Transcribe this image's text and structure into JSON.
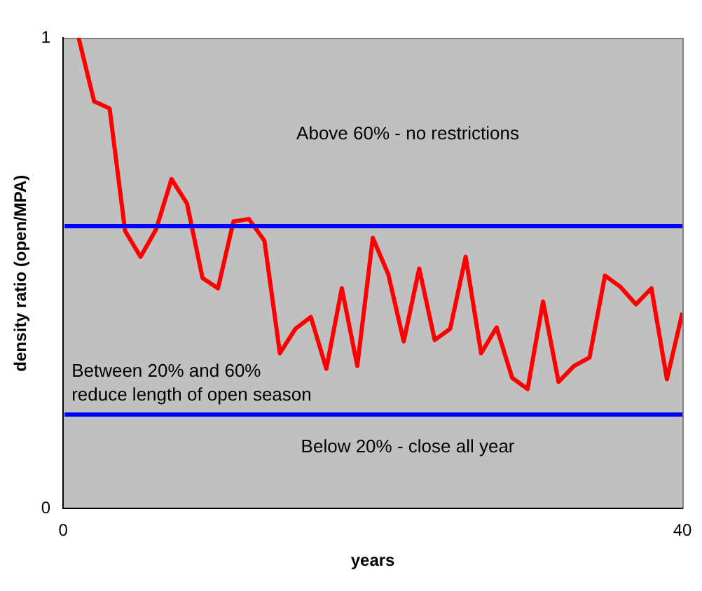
{
  "chart_data": {
    "type": "line",
    "xlabel": "years",
    "ylabel": "density ratio (open/MPA)",
    "x": [
      1,
      2,
      3,
      4,
      5,
      6,
      7,
      8,
      9,
      10,
      11,
      12,
      13,
      14,
      15,
      16,
      17,
      18,
      19,
      20,
      21,
      22,
      23,
      24,
      25,
      26,
      27,
      28,
      29,
      30,
      31,
      32,
      33,
      34,
      35,
      36,
      37,
      38,
      39,
      40
    ],
    "series": [
      {
        "color": "#ff0000",
        "values": [
          1.0,
          0.865,
          0.85,
          0.59,
          0.535,
          0.593,
          0.7,
          0.648,
          0.49,
          0.468,
          0.61,
          0.615,
          0.569,
          0.33,
          0.382,
          0.407,
          0.297,
          0.468,
          0.303,
          0.575,
          0.498,
          0.355,
          0.51,
          0.358,
          0.382,
          0.535,
          0.33,
          0.385,
          0.278,
          0.254,
          0.44,
          0.269,
          0.303,
          0.321,
          0.495,
          0.471,
          0.434,
          0.468,
          0.275,
          0.416
        ]
      }
    ],
    "xlim": [
      0,
      40
    ],
    "xticks": [
      0,
      40
    ],
    "ylim": [
      0,
      1
    ],
    "yticks": [
      0,
      1
    ],
    "ref_lines": [
      {
        "axis": "y",
        "value": 0.6,
        "color": "#0000ff"
      },
      {
        "axis": "y",
        "value": 0.2,
        "color": "#0000ff"
      }
    ],
    "annotations": [
      "Above 60% - no restrictions",
      "Between 20% and 60%\nreduce length of open season",
      "Below 20% - close all year"
    ],
    "grid": false,
    "legend": false,
    "marker": "none",
    "line_style": "solid"
  }
}
